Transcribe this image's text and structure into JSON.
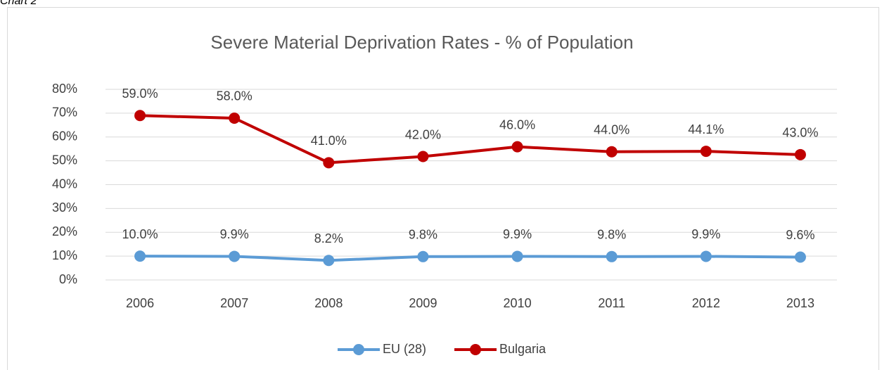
{
  "caption": "Chart 2",
  "chart_data": {
    "type": "line",
    "stacked": true,
    "title": "Severe Material Deprivation Rates - % of Population",
    "categories": [
      "2006",
      "2007",
      "2008",
      "2009",
      "2010",
      "2011",
      "2012",
      "2013"
    ],
    "series": [
      {
        "name": "EU (28)",
        "color": "#5b9bd5",
        "values": [
          10.0,
          9.9,
          8.2,
          9.8,
          9.9,
          9.8,
          9.9,
          9.6
        ],
        "value_labels": [
          "10.0%",
          "9.9%",
          "8.2%",
          "9.8%",
          "9.9%",
          "9.8%",
          "9.9%",
          "9.6%"
        ]
      },
      {
        "name": "Bulgaria",
        "color": "#c00000",
        "values": [
          59.0,
          58.0,
          41.0,
          42.0,
          46.0,
          44.0,
          44.1,
          43.0
        ],
        "value_labels": [
          "59.0%",
          "58.0%",
          "41.0%",
          "42.0%",
          "46.0%",
          "44.0%",
          "44.1%",
          "43.0%"
        ]
      }
    ],
    "ylim": [
      0,
      80
    ],
    "yticks": [
      {
        "value": 0,
        "label": "0%"
      },
      {
        "value": 10,
        "label": "10%"
      },
      {
        "value": 20,
        "label": "20%"
      },
      {
        "value": 30,
        "label": "30%"
      },
      {
        "value": 40,
        "label": "40%"
      },
      {
        "value": 50,
        "label": "50%"
      },
      {
        "value": 60,
        "label": "60%"
      },
      {
        "value": 70,
        "label": "70%"
      },
      {
        "value": 80,
        "label": "80%"
      }
    ],
    "grid": true,
    "legend": "bottom"
  }
}
